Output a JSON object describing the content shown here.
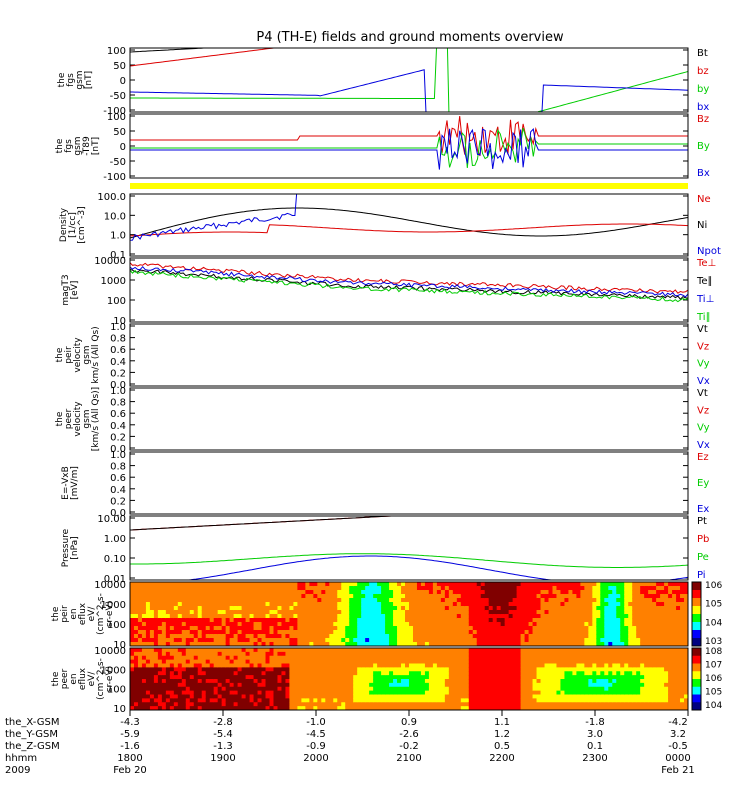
{
  "title": "P4 (TH-E) fields and ground moments overview",
  "colors": {
    "black": "#000000",
    "red": "#dd0000",
    "green": "#00cc00",
    "blue": "#0000dd",
    "yellow": "#ffff00"
  },
  "chart_data": [
    {
      "type": "line",
      "panel": "fgs",
      "ylabel": [
        "the",
        "fgs",
        "gsm",
        "[nT]"
      ],
      "yticks": [
        "100",
        "50",
        "0",
        "-50",
        "-100"
      ],
      "ylim": [
        -100,
        100
      ],
      "legend": [
        {
          "name": "Bt",
          "color": "black"
        },
        {
          "name": "bz",
          "color": "red"
        },
        {
          "name": "by",
          "color": "green"
        },
        {
          "name": "bx",
          "color": "blue"
        }
      ]
    },
    {
      "type": "line",
      "panel": "fgs_detrend",
      "ylabel": [
        "the",
        "fgs",
        "gsm",
        "-T89",
        "[nT]"
      ],
      "yticks": [
        "100",
        "50",
        "0",
        "-50",
        "-100"
      ],
      "ylim": [
        -100,
        100
      ],
      "legend": [
        {
          "name": "Bz",
          "color": "red"
        },
        {
          "name": "By",
          "color": "green"
        },
        {
          "name": "Bx",
          "color": "blue"
        }
      ]
    },
    {
      "type": "line",
      "panel": "density",
      "ylabel": [
        "Density",
        "[1/cc]",
        "[cm^-3]"
      ],
      "yticks": [
        "100.0",
        "10.0",
        "1.0",
        "0.1"
      ],
      "ylim": [
        0.1,
        100
      ],
      "yscale": "log",
      "legend": [
        {
          "name": "Ne",
          "color": "red"
        },
        {
          "name": "Ni",
          "color": "black"
        },
        {
          "name": "Npot",
          "color": "blue"
        }
      ]
    },
    {
      "type": "line",
      "panel": "temperature",
      "ylabel": [
        "magT3",
        "[eV]"
      ],
      "yticks": [
        "10000",
        "1000",
        "100",
        "10"
      ],
      "ylim": [
        10,
        10000
      ],
      "yscale": "log",
      "legend": [
        {
          "name": "Te⊥",
          "color": "red"
        },
        {
          "name": "Te∥",
          "color": "black"
        },
        {
          "name": "Ti⊥",
          "color": "blue"
        },
        {
          "name": "Ti∥",
          "color": "green"
        }
      ]
    },
    {
      "type": "line",
      "panel": "peir_velocity",
      "ylabel": [
        "the",
        "peir",
        "velocity",
        "gsm",
        "km/s (All Qs)"
      ],
      "yticks": [
        "1.0",
        "0.8",
        "0.6",
        "0.4",
        "0.2",
        "0.0"
      ],
      "ylim": [
        0,
        1
      ],
      "legend": [
        {
          "name": "Vt",
          "color": "black"
        },
        {
          "name": "Vz",
          "color": "red"
        },
        {
          "name": "Vy",
          "color": "green"
        },
        {
          "name": "Vx",
          "color": "blue"
        }
      ]
    },
    {
      "type": "line",
      "panel": "peer_velocity",
      "ylabel": [
        "the",
        "peer",
        "velocity",
        "gsm",
        "[km/s (All Qs)]"
      ],
      "yticks": [
        "1.0",
        "0.8",
        "0.6",
        "0.4",
        "0.2",
        "0.0"
      ],
      "ylim": [
        0,
        1
      ],
      "legend": [
        {
          "name": "Vt",
          "color": "black"
        },
        {
          "name": "Vz",
          "color": "red"
        },
        {
          "name": "Vy",
          "color": "green"
        },
        {
          "name": "Vx",
          "color": "blue"
        }
      ]
    },
    {
      "type": "line",
      "panel": "efield",
      "ylabel": [
        "E=-VxB",
        "[mV/m]"
      ],
      "yticks": [
        "1.0",
        "0.8",
        "0.6",
        "0.4",
        "0.2",
        "0.0"
      ],
      "ylim": [
        0,
        1
      ],
      "legend": [
        {
          "name": "Ez",
          "color": "red"
        },
        {
          "name": "Ey",
          "color": "green"
        },
        {
          "name": "Ex",
          "color": "blue"
        }
      ]
    },
    {
      "type": "line",
      "panel": "pressure",
      "ylabel": [
        "Pressure",
        "[nPa]"
      ],
      "yticks": [
        "10.00",
        "1.00",
        "0.10",
        "0.01"
      ],
      "ylim": [
        0.01,
        10
      ],
      "yscale": "log",
      "legend": [
        {
          "name": "Pt",
          "color": "black"
        },
        {
          "name": "Pb",
          "color": "red"
        },
        {
          "name": "Pe",
          "color": "green"
        },
        {
          "name": "Pi",
          "color": "blue"
        }
      ]
    },
    {
      "type": "heatmap",
      "panel": "peir_spectrogram",
      "ylabel": [
        "the",
        "peir",
        "en",
        "eflux",
        "eV/",
        "(cm^2-s-",
        "sr-eV)"
      ],
      "yticks": [
        "10000",
        "1000",
        "100",
        "10"
      ],
      "yscale": "log",
      "colorbar": [
        "10^6",
        "10^5",
        "10^4",
        "10^3"
      ]
    },
    {
      "type": "heatmap",
      "panel": "peer_spectrogram",
      "ylabel": [
        "the",
        "peer",
        "en",
        "eflux",
        "eV/",
        "(cm^2-s-",
        "sr-eV)"
      ],
      "yticks": [
        "10000",
        "1000",
        "100",
        "10"
      ],
      "yscale": "log",
      "colorbar": [
        "10^8",
        "10^7",
        "10^6",
        "10^5",
        "10^4"
      ]
    }
  ],
  "xaxis": {
    "rows": [
      {
        "label": "the_X-GSM",
        "values": [
          "-4.3",
          "-2.8",
          "-1.0",
          "0.9",
          "1.1",
          "-1.8",
          "-4.2"
        ]
      },
      {
        "label": "the_Y-GSM",
        "values": [
          "-5.9",
          "-5.4",
          "-4.5",
          "-2.6",
          "1.2",
          "3.0",
          "3.2"
        ]
      },
      {
        "label": "the_Z-GSM",
        "values": [
          "-1.6",
          "-1.3",
          "-0.9",
          "-0.2",
          "0.5",
          "0.1",
          "-0.5"
        ]
      },
      {
        "label": "hhmm",
        "values": [
          "1800",
          "1900",
          "2000",
          "2100",
          "2200",
          "2300",
          "0000"
        ]
      },
      {
        "label": "2009",
        "values": [
          "Feb 20",
          "",
          "",
          "",
          "",
          "",
          "Feb 21"
        ]
      }
    ]
  }
}
